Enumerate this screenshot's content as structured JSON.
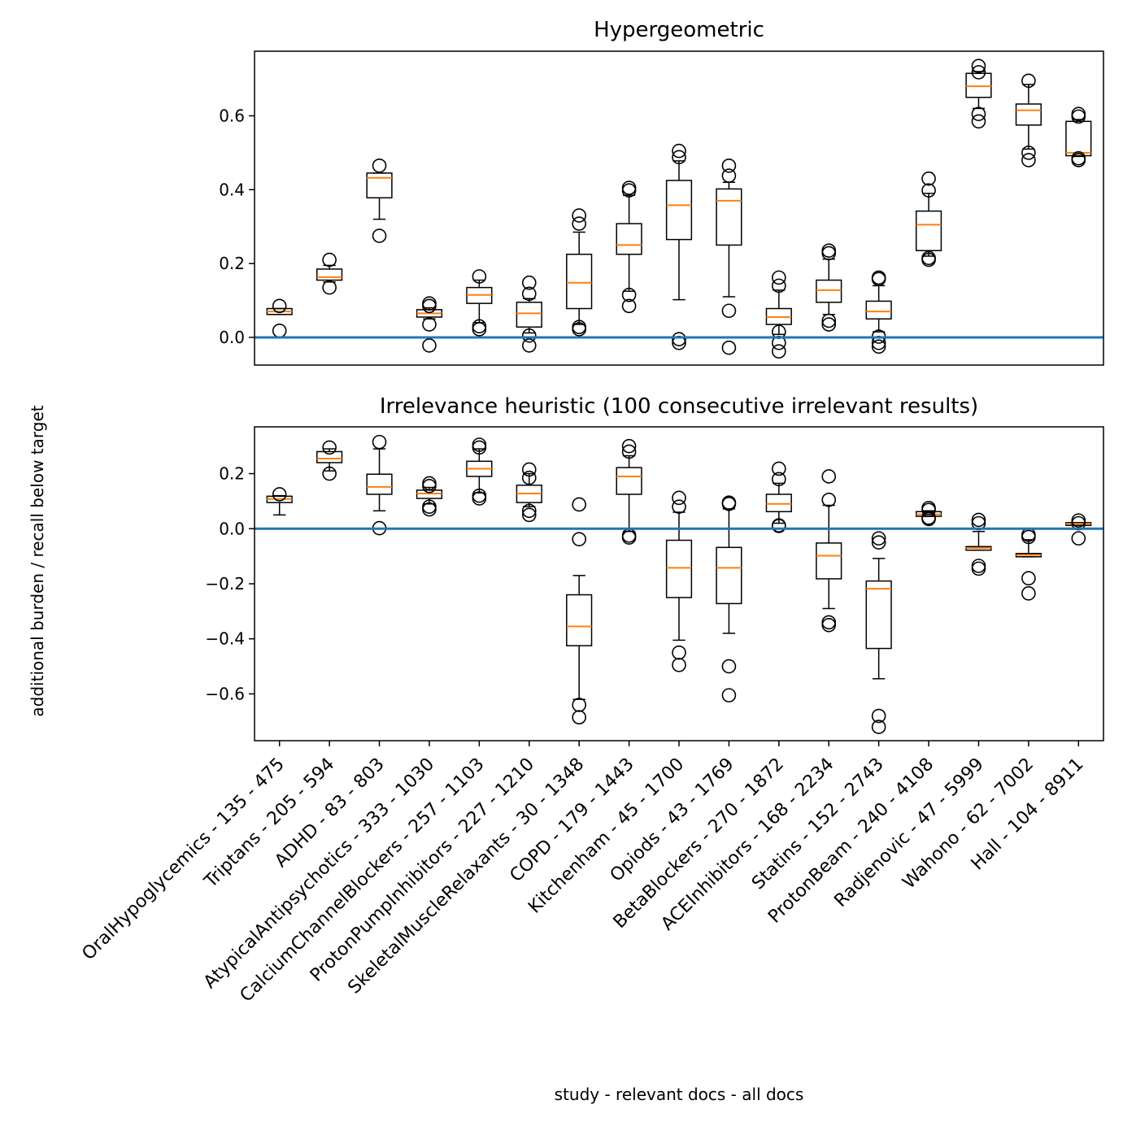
{
  "figure": {
    "ylabel": "additional burden / recall below target",
    "xlabel": "study - relevant docs - all docs",
    "categories": [
      "OralHypoglycemics - 135 - 475",
      "Triptans - 205 - 594",
      "ADHD - 83 - 803",
      "AtypicalAntipsychotics - 333 - 1030",
      "CalciumChannelBlockers - 257 - 1103",
      "ProtonPumpInhibitors - 227 - 1210",
      "SkeletalMuscleRelaxants - 30 - 1348",
      "COPD - 179 - 1443",
      "Kitchenham - 45 - 1700",
      "Opiods - 43 - 1769",
      "BetaBlockers - 270 - 1872",
      "ACEInhibitors - 168 - 2234",
      "Statins - 152 - 2743",
      "ProtonBeam - 240 - 4108",
      "Radjenovic - 47 - 5999",
      "Wahono - 62 - 7002",
      "Hall - 104 - 8911"
    ],
    "colors": {
      "median": "#ff7f0e",
      "reference_line": "#1f77b4",
      "box": "#000000"
    }
  },
  "chart_data": [
    {
      "type": "box",
      "title": "Hypergeometric",
      "ylim": [
        -0.075,
        0.775
      ],
      "yticks": [
        0.0,
        0.2,
        0.4,
        0.6
      ],
      "ytick_labels": [
        "0.0",
        "0.2",
        "0.4",
        "0.6"
      ],
      "reference_line": 0.0,
      "grid": false,
      "boxes": [
        {
          "q1": 0.062,
          "median": 0.07,
          "q3": 0.078,
          "wlo": 0.062,
          "whi": 0.078,
          "outliers": [
            0.085,
            0.018
          ]
        },
        {
          "q1": 0.155,
          "median": 0.163,
          "q3": 0.185,
          "wlo": 0.15,
          "whi": 0.195,
          "outliers": [
            0.21,
            0.135
          ]
        },
        {
          "q1": 0.378,
          "median": 0.432,
          "q3": 0.445,
          "wlo": 0.32,
          "whi": 0.445,
          "outliers": [
            0.465,
            0.275
          ]
        },
        {
          "q1": 0.055,
          "median": 0.065,
          "q3": 0.075,
          "wlo": 0.05,
          "whi": 0.08,
          "outliers": [
            0.092,
            0.085,
            0.035,
            -0.022
          ]
        },
        {
          "q1": 0.092,
          "median": 0.115,
          "q3": 0.135,
          "wlo": 0.04,
          "whi": 0.155,
          "outliers": [
            0.165,
            0.03,
            0.022
          ]
        },
        {
          "q1": 0.028,
          "median": 0.065,
          "q3": 0.095,
          "wlo": 0.012,
          "whi": 0.105,
          "outliers": [
            0.148,
            0.118,
            0.005,
            -0.022
          ]
        },
        {
          "q1": 0.078,
          "median": 0.148,
          "q3": 0.225,
          "wlo": 0.035,
          "whi": 0.285,
          "outliers": [
            0.33,
            0.308,
            0.028,
            0.022
          ]
        },
        {
          "q1": 0.225,
          "median": 0.25,
          "q3": 0.308,
          "wlo": 0.125,
          "whi": 0.385,
          "outliers": [
            0.405,
            0.398,
            0.115,
            0.085
          ]
        },
        {
          "q1": 0.265,
          "median": 0.358,
          "q3": 0.425,
          "wlo": 0.102,
          "whi": 0.478,
          "outliers": [
            0.505,
            0.488,
            -0.005,
            -0.015
          ]
        },
        {
          "q1": 0.25,
          "median": 0.37,
          "q3": 0.402,
          "wlo": 0.11,
          "whi": 0.42,
          "outliers": [
            0.465,
            0.438,
            0.072,
            -0.028
          ]
        },
        {
          "q1": 0.035,
          "median": 0.055,
          "q3": 0.078,
          "wlo": 0.008,
          "whi": 0.128,
          "outliers": [
            0.162,
            0.14,
            0.015,
            -0.015,
            -0.038
          ]
        },
        {
          "q1": 0.095,
          "median": 0.128,
          "q3": 0.155,
          "wlo": 0.062,
          "whi": 0.212,
          "outliers": [
            0.235,
            0.228,
            0.045,
            0.035
          ]
        },
        {
          "q1": 0.05,
          "median": 0.07,
          "q3": 0.098,
          "wlo": 0.015,
          "whi": 0.14,
          "outliers": [
            0.162,
            0.158,
            0.002,
            -0.015,
            -0.025
          ]
        },
        {
          "q1": 0.235,
          "median": 0.305,
          "q3": 0.342,
          "wlo": 0.22,
          "whi": 0.39,
          "outliers": [
            0.43,
            0.398,
            0.215,
            0.21
          ]
        },
        {
          "q1": 0.65,
          "median": 0.68,
          "q3": 0.715,
          "wlo": 0.62,
          "whi": 0.72,
          "outliers": [
            0.735,
            0.718,
            0.605,
            0.585
          ]
        },
        {
          "q1": 0.575,
          "median": 0.615,
          "q3": 0.632,
          "wlo": 0.51,
          "whi": 0.685,
          "outliers": [
            0.695,
            0.5,
            0.48
          ]
        },
        {
          "q1": 0.492,
          "median": 0.5,
          "q3": 0.585,
          "wlo": 0.49,
          "whi": 0.59,
          "outliers": [
            0.605,
            0.598,
            0.485,
            0.48
          ]
        }
      ]
    },
    {
      "type": "box",
      "title": "Irrelevance heuristic (100 consecutive irrelevant results)",
      "ylim": [
        -0.77,
        0.37
      ],
      "yticks": [
        -0.6,
        -0.4,
        -0.2,
        0.0,
        0.2
      ],
      "ytick_labels": [
        "−0.6",
        "−0.4",
        "−0.2",
        "0.0",
        "0.2"
      ],
      "reference_line": 0.0,
      "grid": false,
      "boxes": [
        {
          "q1": 0.095,
          "median": 0.108,
          "q3": 0.118,
          "wlo": 0.05,
          "whi": 0.12,
          "outliers": [
            0.125
          ]
        },
        {
          "q1": 0.24,
          "median": 0.255,
          "q3": 0.28,
          "wlo": 0.21,
          "whi": 0.29,
          "outliers": [
            0.295,
            0.2
          ]
        },
        {
          "q1": 0.125,
          "median": 0.152,
          "q3": 0.198,
          "wlo": 0.065,
          "whi": 0.29,
          "outliers": [
            0.315,
            0.002
          ]
        },
        {
          "q1": 0.11,
          "median": 0.128,
          "q3": 0.14,
          "wlo": 0.09,
          "whi": 0.15,
          "outliers": [
            0.165,
            0.155,
            0.08,
            0.07
          ]
        },
        {
          "q1": 0.19,
          "median": 0.218,
          "q3": 0.245,
          "wlo": 0.13,
          "whi": 0.29,
          "outliers": [
            0.305,
            0.295,
            0.12,
            0.11
          ]
        },
        {
          "q1": 0.095,
          "median": 0.128,
          "q3": 0.158,
          "wlo": 0.08,
          "whi": 0.2,
          "outliers": [
            0.215,
            0.185,
            0.065,
            0.05
          ]
        },
        {
          "q1": -0.425,
          "median": -0.355,
          "q3": -0.24,
          "wlo": -0.62,
          "whi": -0.17,
          "outliers": [
            0.088,
            -0.038,
            -0.64,
            -0.685
          ]
        },
        {
          "q1": 0.125,
          "median": 0.19,
          "q3": 0.222,
          "wlo": -0.01,
          "whi": 0.265,
          "outliers": [
            0.3,
            0.28,
            -0.025,
            -0.032
          ]
        },
        {
          "q1": -0.25,
          "median": -0.142,
          "q3": -0.042,
          "wlo": -0.405,
          "whi": 0.06,
          "outliers": [
            0.112,
            0.08,
            -0.45,
            -0.495
          ]
        },
        {
          "q1": -0.272,
          "median": -0.142,
          "q3": -0.068,
          "wlo": -0.38,
          "whi": 0.072,
          "outliers": [
            0.095,
            0.09,
            -0.5,
            -0.605
          ]
        },
        {
          "q1": 0.062,
          "median": 0.09,
          "q3": 0.125,
          "wlo": 0.02,
          "whi": 0.165,
          "outliers": [
            0.218,
            0.18,
            0.012,
            0.01
          ]
        },
        {
          "q1": -0.182,
          "median": -0.098,
          "q3": -0.052,
          "wlo": -0.29,
          "whi": 0.085,
          "outliers": [
            0.19,
            0.105,
            -0.34,
            -0.35
          ]
        },
        {
          "q1": -0.435,
          "median": -0.218,
          "q3": -0.19,
          "wlo": -0.545,
          "whi": -0.108,
          "outliers": [
            -0.035,
            -0.05,
            -0.68,
            -0.72
          ]
        },
        {
          "q1": 0.045,
          "median": 0.052,
          "q3": 0.062,
          "wlo": 0.045,
          "whi": 0.065,
          "outliers": [
            0.075,
            0.068,
            0.04,
            0.035
          ]
        },
        {
          "q1": -0.078,
          "median": -0.07,
          "q3": -0.065,
          "wlo": -0.078,
          "whi": -0.01,
          "outliers": [
            0.032,
            0.02,
            -0.135,
            -0.145
          ]
        },
        {
          "q1": -0.102,
          "median": -0.095,
          "q3": -0.09,
          "wlo": -0.102,
          "whi": -0.04,
          "outliers": [
            -0.022,
            -0.03,
            -0.18,
            -0.235
          ]
        },
        {
          "q1": 0.012,
          "median": 0.018,
          "q3": 0.022,
          "wlo": 0.012,
          "whi": 0.022,
          "outliers": [
            0.03,
            0.02,
            -0.035
          ]
        }
      ]
    }
  ]
}
